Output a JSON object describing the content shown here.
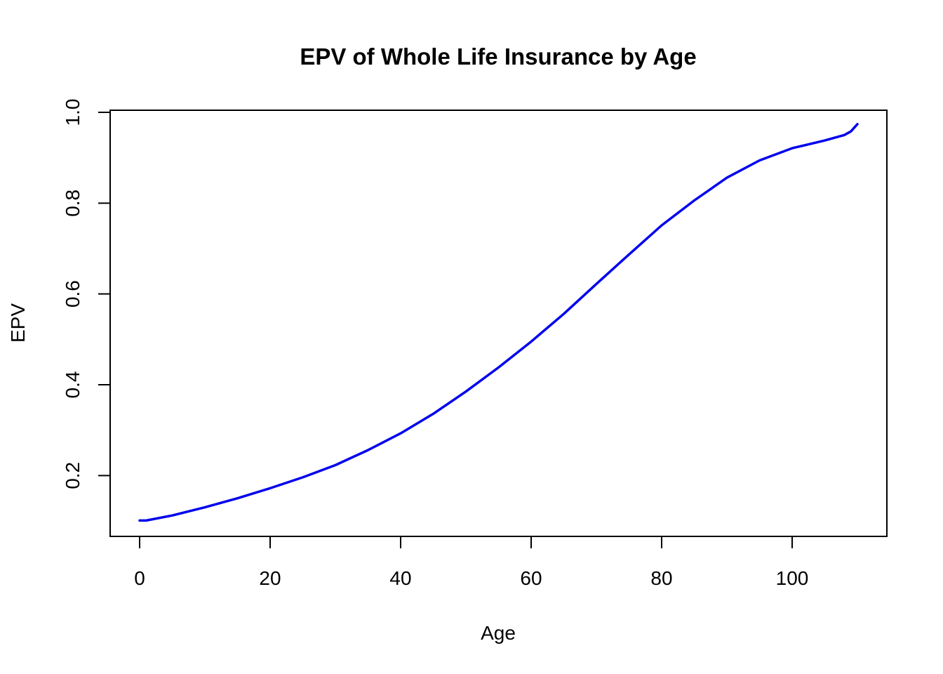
{
  "chart_data": {
    "type": "line",
    "title": "EPV of Whole Life Insurance by Age",
    "xlabel": "Age",
    "ylabel": "EPV",
    "xlim": [
      0,
      110
    ],
    "ylim": [
      0.1,
      1.0
    ],
    "xticks": [
      0,
      20,
      40,
      60,
      80,
      100
    ],
    "yticks": [
      0.2,
      0.4,
      0.6,
      0.8,
      1.0
    ],
    "xtick_labels": [
      "0",
      "20",
      "40",
      "60",
      "80",
      "100"
    ],
    "ytick_labels": [
      "0.2",
      "0.4",
      "0.6",
      "0.8",
      "1.0"
    ],
    "grid": false,
    "line_color": "#0000ee",
    "series": [
      {
        "x": [
          0,
          1,
          5,
          10,
          15,
          20,
          25,
          30,
          35,
          40,
          45,
          50,
          55,
          60,
          65,
          70,
          75,
          80,
          85,
          90,
          95,
          100,
          105,
          108,
          109,
          110
        ],
        "y": [
          0.101,
          0.101,
          0.112,
          0.13,
          0.15,
          0.172,
          0.196,
          0.223,
          0.256,
          0.293,
          0.336,
          0.385,
          0.438,
          0.495,
          0.556,
          0.622,
          0.687,
          0.751,
          0.806,
          0.856,
          0.894,
          0.921,
          0.938,
          0.95,
          0.958,
          0.974
        ]
      }
    ]
  }
}
